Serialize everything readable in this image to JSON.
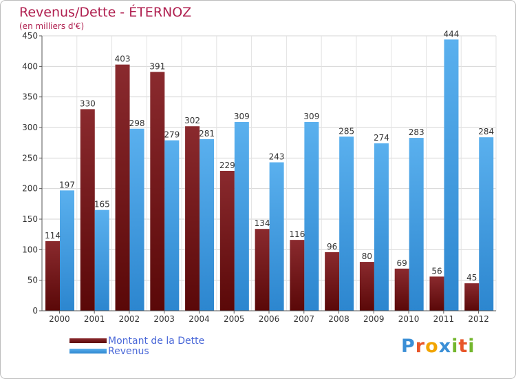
{
  "header": {
    "title": "Revenus/Dette - ÉTERNOZ",
    "subtitle": "(en milliers d'€)"
  },
  "legend": {
    "items": [
      {
        "label": "Montant de la Dette",
        "color": "#7a1a1a"
      },
      {
        "label": "Revenus",
        "color": "#4aa3e8"
      }
    ]
  },
  "logo": {
    "text": "Proxiti",
    "letters": [
      {
        "char": "P",
        "color": "#3b8fd6"
      },
      {
        "char": "r",
        "color": "#e8562a"
      },
      {
        "char": "o",
        "color": "#f2a500"
      },
      {
        "char": "x",
        "color": "#3b8fd6"
      },
      {
        "char": "i",
        "color": "#74b72e"
      },
      {
        "char": "t",
        "color": "#e8562a"
      },
      {
        "char": "i",
        "color": "#74b72e"
      }
    ]
  },
  "chart_data": {
    "type": "bar",
    "title": "Revenus/Dette - ÉTERNOZ",
    "subtitle": "(en milliers d'€)",
    "xlabel": "",
    "ylabel": "",
    "categories": [
      "2000",
      "2001",
      "2002",
      "2003",
      "2004",
      "2005",
      "2006",
      "2007",
      "2008",
      "2009",
      "2010",
      "2011",
      "2012"
    ],
    "series": [
      {
        "name": "Montant de la Dette",
        "color": "#7a1a1a",
        "values": [
          114,
          330,
          403,
          391,
          302,
          229,
          134,
          116,
          96,
          80,
          69,
          56,
          45
        ]
      },
      {
        "name": "Revenus",
        "color": "#4aa3e8",
        "values": [
          197,
          165,
          298,
          279,
          281,
          309,
          243,
          309,
          285,
          274,
          283,
          444,
          284
        ]
      }
    ],
    "yticks": [
      0,
      50,
      100,
      150,
      200,
      250,
      300,
      350,
      400,
      450
    ],
    "ylim": [
      0,
      450
    ],
    "grid": true,
    "legend": "bottom-left"
  }
}
